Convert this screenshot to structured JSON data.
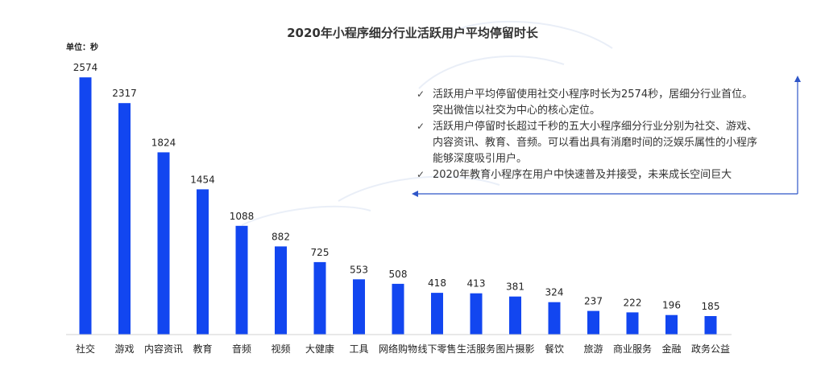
{
  "chart_data": {
    "type": "bar",
    "title": "2020年小程序细分行业活跃用户平均停留时长",
    "unit_label": "单位：秒",
    "categories": [
      "社交",
      "游戏",
      "内容资讯",
      "教育",
      "音频",
      "视频",
      "大健康",
      "工具",
      "网络购物",
      "线下零售",
      "生活服务",
      "图片摄影",
      "餐饮",
      "旅游",
      "商业服务",
      "金融",
      "政务公益"
    ],
    "values": [
      2574,
      2317,
      1824,
      1454,
      1088,
      882,
      725,
      553,
      508,
      418,
      413,
      381,
      324,
      237,
      222,
      196,
      185
    ],
    "ylim": [
      0,
      2600
    ],
    "bar_color": "#1246f0",
    "grid": false,
    "legend": "none"
  },
  "notes": {
    "items": [
      {
        "lines": [
          "活跃用户平均停留使用社交小程序时长为2574秒，居细分行业首位。",
          "突出微信以社交为中心的核心定位。"
        ]
      },
      {
        "lines": [
          "活跃用户停留时长超过千秒的五大小程序细分行业分别为社交、游戏、",
          "内容资讯、教育、音频。可以看出具有消磨时间的泛娱乐属性的小程序",
          "能够深度吸引用户。"
        ]
      },
      {
        "lines": [
          "2020年教育小程序在用户中快速普及并接受，未来成长空间巨大"
        ]
      }
    ],
    "bullet": "✓",
    "border_color": "#2f56c8"
  }
}
